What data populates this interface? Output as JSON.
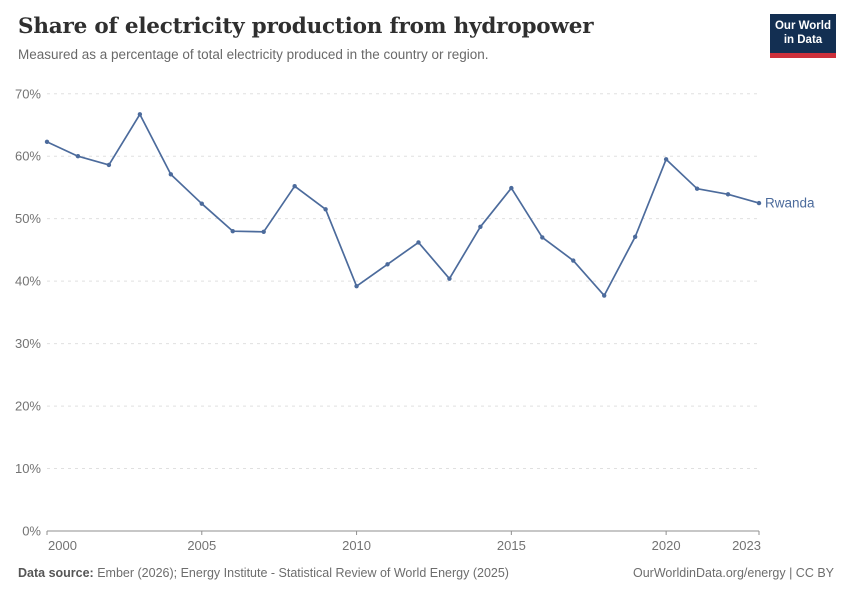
{
  "header": {
    "title": "Share of electricity production from hydropower",
    "subtitle": "Measured as a percentage of total electricity produced in the country or region.",
    "logo": {
      "line1": "Our World",
      "line2": "in Data",
      "bg_color": "#132f52",
      "accent_color": "#cd303b"
    }
  },
  "chart_data": {
    "type": "line",
    "title": "Share of electricity production from hydropower",
    "xlabel": "",
    "ylabel": "",
    "xlim": [
      2000,
      2023
    ],
    "ylim": [
      0,
      70
    ],
    "x_ticks": [
      2000,
      2005,
      2010,
      2015,
      2020,
      2023
    ],
    "y_ticks": [
      0,
      10,
      20,
      30,
      40,
      50,
      60,
      70
    ],
    "y_tick_suffix": "%",
    "grid": "horizontal-dashed",
    "legend_position": "end-of-line-label",
    "series": [
      {
        "name": "Rwanda",
        "color": "#4c6b9c",
        "x": [
          2000,
          2001,
          2002,
          2003,
          2004,
          2005,
          2006,
          2007,
          2008,
          2009,
          2010,
          2011,
          2012,
          2013,
          2014,
          2015,
          2016,
          2017,
          2018,
          2019,
          2020,
          2021,
          2022,
          2023
        ],
        "values": [
          62.3,
          60.0,
          58.6,
          66.7,
          57.1,
          52.4,
          48.0,
          47.9,
          55.2,
          51.5,
          39.2,
          42.7,
          46.2,
          40.4,
          48.7,
          54.9,
          47.0,
          43.3,
          37.7,
          47.1,
          59.5,
          54.8,
          53.9,
          52.5
        ]
      }
    ]
  },
  "footer": {
    "datasource_label": "Data source:",
    "datasource_text": " Ember (2026); Energy Institute - Statistical Review of World Energy (2025)",
    "credit": "OurWorldinData.org/energy | CC BY"
  },
  "colors": {
    "line": "#4c6b9c",
    "grid": "#e0e0e0",
    "axis": "#8f8f8f",
    "tick_label": "#737373",
    "title": "#2f2f2f",
    "subtitle": "#696969"
  }
}
